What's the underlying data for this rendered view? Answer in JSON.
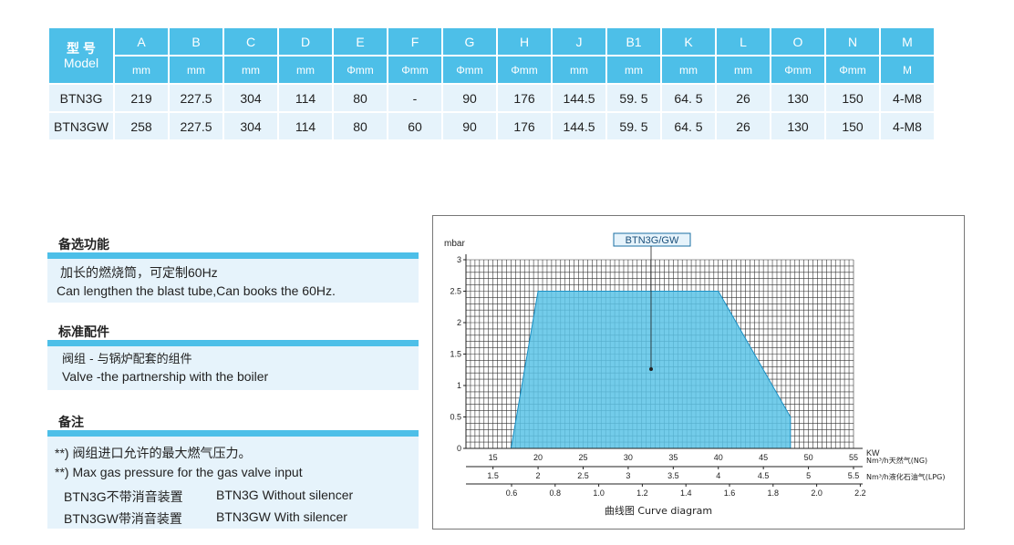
{
  "spec_table": {
    "model_header_zh": "型 号",
    "model_header_en": "Model",
    "columns": [
      "A",
      "B",
      "C",
      "D",
      "E",
      "F",
      "G",
      "H",
      "J",
      "B1",
      "K",
      "L",
      "O",
      "N",
      "M"
    ],
    "units": [
      "mm",
      "mm",
      "mm",
      "mm",
      "Φmm",
      "Φmm",
      "Φmm",
      "Φmm",
      "mm",
      "mm",
      "mm",
      "mm",
      "Φmm",
      "Φmm",
      "M"
    ],
    "rows": [
      {
        "model": "BTN3G",
        "values": [
          "219",
          "227.5",
          "304",
          "114",
          "80",
          "-",
          "90",
          "176",
          "144.5",
          "59. 5",
          "64. 5",
          "26",
          "130",
          "150",
          "4-M8"
        ]
      },
      {
        "model": "BTN3GW",
        "values": [
          "258",
          "227.5",
          "304",
          "114",
          "80",
          "60",
          "90",
          "176",
          "144.5",
          "59. 5",
          "64. 5",
          "26",
          "130",
          "150",
          "4-M8"
        ]
      }
    ]
  },
  "options": {
    "title": "备选功能",
    "lines": [
      "加长的燃烧筒，可定制60Hz",
      "Can lengthen the blast tube,Can books the 60Hz."
    ]
  },
  "standard": {
    "title": "标准配件",
    "lines": [
      "阀组 - 与锅炉配套的组件",
      "Valve -the partnership with the boiler"
    ]
  },
  "notes": {
    "title": "备注",
    "lines": [
      "**) 阀组进口允许的最大燃气压力。",
      "**) Max gas pressure for the gas valve input"
    ],
    "silencer": [
      {
        "zh": "BTN3G不带消音装置",
        "en": "BTN3G Without silencer"
      },
      {
        "zh": "BTN3GW带消音装置",
        "en": "BTN3GW With silencer"
      }
    ]
  },
  "chart_data": {
    "type": "area",
    "title": "曲线图 Curve diagram",
    "series": [
      {
        "name": "BTN3G/GW",
        "x": [
          17,
          20,
          40,
          48,
          48
        ],
        "y": [
          0,
          2.5,
          2.5,
          0.5,
          0
        ]
      }
    ],
    "ylabel": "mbar",
    "ylim": [
      0,
      3
    ],
    "yticks": [
      "0",
      "0.5",
      "1",
      "1.5",
      "2",
      "2.5",
      "3"
    ],
    "xlim": [
      12,
      55
    ],
    "kw_axis": {
      "label": "KW",
      "ticks": [
        "15",
        "20",
        "25",
        "30",
        "35",
        "40",
        "45",
        "50",
        "55"
      ]
    },
    "ng_axis": {
      "label": "Nm³/h天然气(NG)",
      "ticks": [
        "1.5",
        "2",
        "2.5",
        "3",
        "3.5",
        "4",
        "4.5",
        "5",
        "5.5"
      ]
    },
    "lpg_axis": {
      "label": "Nm³/h液化石油气(LPG)",
      "ticks": [
        "0.6",
        "0.8",
        "1.0",
        "1.2",
        "1.4",
        "1.6",
        "1.8",
        "2.0",
        "2.2"
      ]
    },
    "grid": true,
    "colors": {
      "fill": "#5bc3e6",
      "header": "#4dbfe8",
      "row_bg": "#e6f3fb"
    }
  }
}
